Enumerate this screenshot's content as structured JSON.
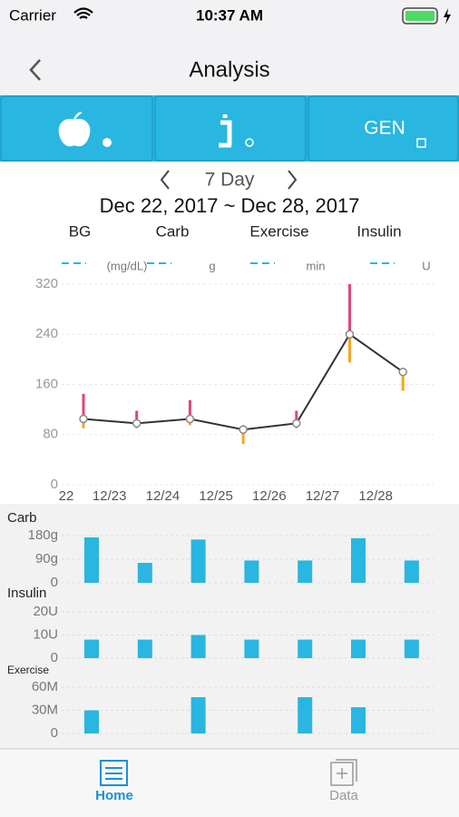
{
  "status_bar": {
    "carrier": "Carrier",
    "time": "10:37 AM"
  },
  "nav": {
    "title": "Analysis"
  },
  "tabs": {
    "gen": "GEN"
  },
  "period": {
    "label": "7 Day",
    "range": "Dec 22, 2017 ~ Dec 28, 2017"
  },
  "legend": [
    {
      "name": "BG",
      "unit": "(mg/dL)"
    },
    {
      "name": "Carb",
      "unit": "g"
    },
    {
      "name": "Exercise",
      "unit": "min"
    },
    {
      "name": "Insulin",
      "unit": "U"
    }
  ],
  "bg_chart": {
    "type": "line",
    "categories": [
      "22",
      "12/23",
      "12/24",
      "12/25",
      "12/26",
      "12/27",
      "12/28"
    ],
    "values": [
      105,
      98,
      105,
      88,
      98,
      240,
      180
    ],
    "max": [
      145,
      118,
      135,
      95,
      118,
      320,
      185
    ],
    "min": [
      90,
      90,
      95,
      65,
      90,
      195,
      150
    ],
    "color": "#333333",
    "max_color": "#e0457b",
    "min_color": "#f5a623",
    "ylim": [
      0,
      320
    ],
    "yticks": [
      0,
      80,
      160,
      240,
      320
    ],
    "grid": true
  },
  "bar_charts": [
    {
      "type": "bar",
      "title": "Carb",
      "values": [
        173,
        76,
        165,
        85,
        85,
        170,
        85
      ],
      "color": "#29b6e0",
      "ylim": [
        0,
        180
      ],
      "yticks": [
        0,
        {
          "value": 90,
          "label": "90g"
        },
        {
          "value": 180,
          "label": "180g"
        }
      ]
    },
    {
      "type": "bar",
      "title": "Insulin",
      "values": [
        8,
        8,
        10,
        8,
        8,
        8,
        8
      ],
      "color": "#29b6e0",
      "ylim": [
        0,
        20
      ],
      "yticks": [
        0,
        {
          "value": 10,
          "label": "10U"
        },
        {
          "value": 20,
          "label": "20U"
        }
      ]
    },
    {
      "type": "bar",
      "title": "Exercise",
      "values": [
        30,
        0,
        47,
        0,
        47,
        34,
        0
      ],
      "color": "#29b6e0",
      "ylim": [
        0,
        60
      ],
      "yticks": [
        0,
        {
          "value": 30,
          "label": "30M"
        },
        {
          "value": 60,
          "label": "60M"
        }
      ]
    }
  ],
  "bottom_tabs": [
    {
      "label": "Home"
    },
    {
      "label": "Data"
    }
  ]
}
